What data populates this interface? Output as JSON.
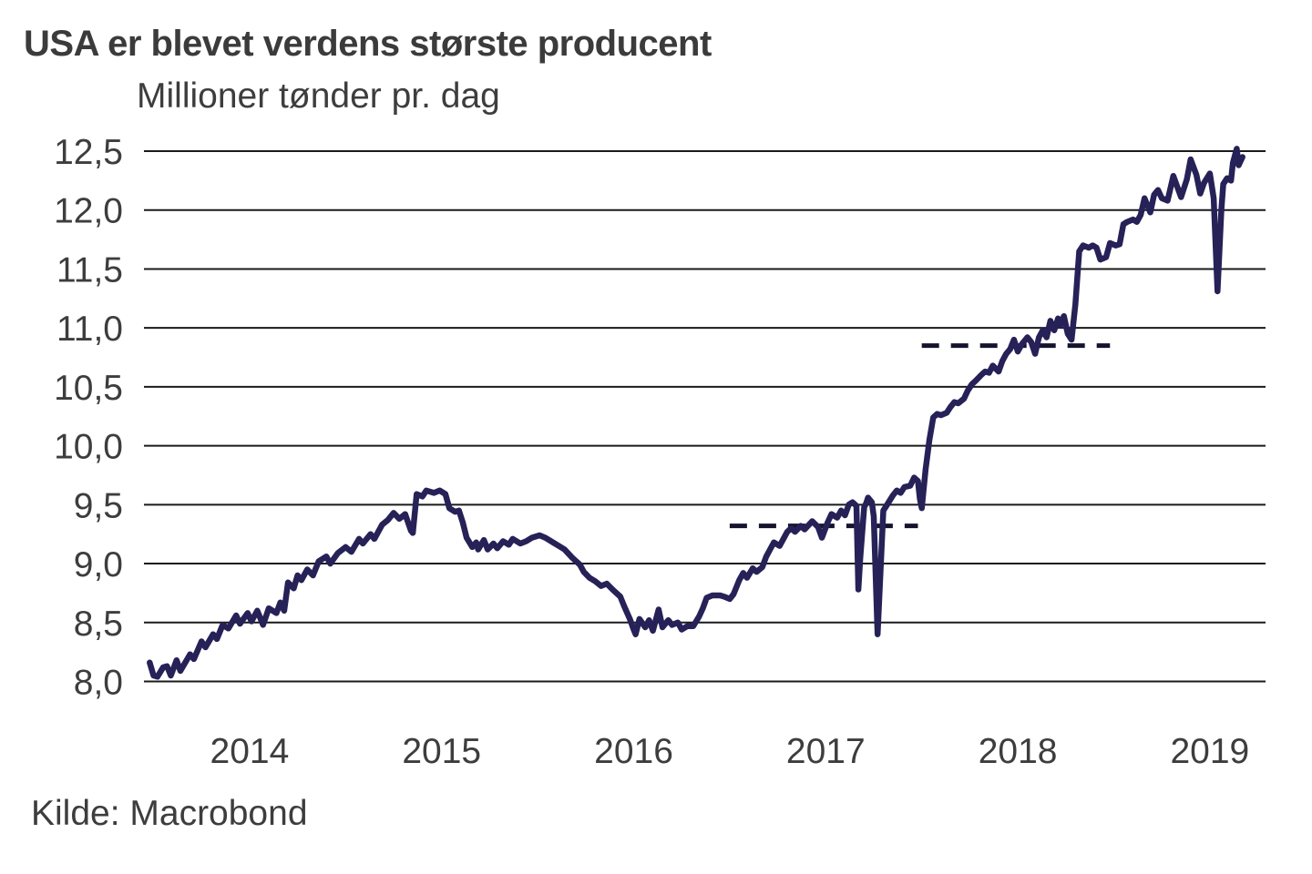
{
  "header": {
    "title": "USA er blevet verdens største producent",
    "subtitle": "Millioner tønder pr. dag"
  },
  "footer": {
    "source": "Kilde: Macrobond"
  },
  "chart_data": {
    "type": "line",
    "title": "USA er blevet verdens største producent",
    "ylabel": "Millioner tønder pr. dag",
    "source": "Kilde: Macrobond",
    "grid": true,
    "legend": "none",
    "xlim": [
      2013.95,
      2019.79
    ],
    "ylim": [
      8.0,
      12.5
    ],
    "y_ticks": [
      {
        "value": 12.5,
        "label": "12,5"
      },
      {
        "value": 12.0,
        "label": "12,0"
      },
      {
        "value": 11.5,
        "label": "11,5"
      },
      {
        "value": 11.0,
        "label": "11,0"
      },
      {
        "value": 10.5,
        "label": "10,5"
      },
      {
        "value": 10.0,
        "label": "10,0"
      },
      {
        "value": 9.5,
        "label": "9,5"
      },
      {
        "value": 9.0,
        "label": "9,0"
      },
      {
        "value": 8.5,
        "label": "8,5"
      },
      {
        "value": 8.0,
        "label": "8,0"
      }
    ],
    "x_ticks": [
      {
        "center": 2014.5,
        "label": "2014"
      },
      {
        "center": 2015.5,
        "label": "2015"
      },
      {
        "center": 2016.5,
        "label": "2016"
      },
      {
        "center": 2017.5,
        "label": "2017"
      },
      {
        "center": 2018.5,
        "label": "2018"
      },
      {
        "center": 2019.5,
        "label": "2019"
      }
    ],
    "line_color": "#262157",
    "reference_lines": [
      {
        "style": "dashed",
        "value": 9.32,
        "from": 2017.0,
        "to": 2017.98,
        "color": "#14142e"
      },
      {
        "style": "dashed",
        "value": 10.85,
        "from": 2018.0,
        "to": 2018.98,
        "color": "#14142e"
      }
    ],
    "series": [
      {
        "color": "#262157",
        "points": [
          [
            2013.98,
            8.16
          ],
          [
            2014.0,
            8.05
          ],
          [
            2014.02,
            8.04
          ],
          [
            2014.05,
            8.12
          ],
          [
            2014.07,
            8.13
          ],
          [
            2014.09,
            8.05
          ],
          [
            2014.12,
            8.18
          ],
          [
            2014.14,
            8.09
          ],
          [
            2014.19,
            8.23
          ],
          [
            2014.21,
            8.19
          ],
          [
            2014.25,
            8.34
          ],
          [
            2014.27,
            8.29
          ],
          [
            2014.31,
            8.4
          ],
          [
            2014.33,
            8.36
          ],
          [
            2014.36,
            8.48
          ],
          [
            2014.39,
            8.45
          ],
          [
            2014.43,
            8.56
          ],
          [
            2014.45,
            8.49
          ],
          [
            2014.49,
            8.58
          ],
          [
            2014.51,
            8.51
          ],
          [
            2014.54,
            8.6
          ],
          [
            2014.57,
            8.48
          ],
          [
            2014.6,
            8.62
          ],
          [
            2014.64,
            8.58
          ],
          [
            2014.66,
            8.67
          ],
          [
            2014.68,
            8.6
          ],
          [
            2014.7,
            8.84
          ],
          [
            2014.73,
            8.79
          ],
          [
            2014.75,
            8.9
          ],
          [
            2014.77,
            8.86
          ],
          [
            2014.8,
            8.95
          ],
          [
            2014.83,
            8.9
          ],
          [
            2014.86,
            9.02
          ],
          [
            2014.9,
            9.06
          ],
          [
            2014.92,
            9.0
          ],
          [
            2014.96,
            9.09
          ],
          [
            2015.0,
            9.14
          ],
          [
            2015.03,
            9.1
          ],
          [
            2015.07,
            9.21
          ],
          [
            2015.09,
            9.17
          ],
          [
            2015.13,
            9.25
          ],
          [
            2015.15,
            9.21
          ],
          [
            2015.19,
            9.33
          ],
          [
            2015.22,
            9.37
          ],
          [
            2015.25,
            9.43
          ],
          [
            2015.28,
            9.38
          ],
          [
            2015.31,
            9.42
          ],
          [
            2015.34,
            9.28
          ],
          [
            2015.35,
            9.26
          ],
          [
            2015.37,
            9.59
          ],
          [
            2015.4,
            9.57
          ],
          [
            2015.42,
            9.62
          ],
          [
            2015.46,
            9.6
          ],
          [
            2015.49,
            9.62
          ],
          [
            2015.52,
            9.59
          ],
          [
            2015.54,
            9.47
          ],
          [
            2015.57,
            9.44
          ],
          [
            2015.59,
            9.45
          ],
          [
            2015.61,
            9.35
          ],
          [
            2015.63,
            9.22
          ],
          [
            2015.66,
            9.14
          ],
          [
            2015.68,
            9.18
          ],
          [
            2015.69,
            9.12
          ],
          [
            2015.72,
            9.2
          ],
          [
            2015.74,
            9.12
          ],
          [
            2015.77,
            9.17
          ],
          [
            2015.79,
            9.13
          ],
          [
            2015.82,
            9.19
          ],
          [
            2015.85,
            9.16
          ],
          [
            2015.87,
            9.21
          ],
          [
            2015.91,
            9.17
          ],
          [
            2015.94,
            9.19
          ],
          [
            2015.97,
            9.22
          ],
          [
            2016.01,
            9.24
          ],
          [
            2016.04,
            9.22
          ],
          [
            2016.08,
            9.18
          ],
          [
            2016.11,
            9.15
          ],
          [
            2016.14,
            9.12
          ],
          [
            2016.18,
            9.05
          ],
          [
            2016.22,
            8.99
          ],
          [
            2016.24,
            8.93
          ],
          [
            2016.27,
            8.88
          ],
          [
            2016.3,
            8.85
          ],
          [
            2016.33,
            8.81
          ],
          [
            2016.36,
            8.83
          ],
          [
            2016.39,
            8.78
          ],
          [
            2016.43,
            8.72
          ],
          [
            2016.45,
            8.64
          ],
          [
            2016.48,
            8.53
          ],
          [
            2016.5,
            8.44
          ],
          [
            2016.51,
            8.4
          ],
          [
            2016.53,
            8.53
          ],
          [
            2016.56,
            8.46
          ],
          [
            2016.58,
            8.52
          ],
          [
            2016.6,
            8.43
          ],
          [
            2016.63,
            8.61
          ],
          [
            2016.65,
            8.46
          ],
          [
            2016.68,
            8.52
          ],
          [
            2016.7,
            8.48
          ],
          [
            2016.73,
            8.5
          ],
          [
            2016.75,
            8.44
          ],
          [
            2016.78,
            8.47
          ],
          [
            2016.81,
            8.47
          ],
          [
            2016.84,
            8.55
          ],
          [
            2016.86,
            8.62
          ],
          [
            2016.88,
            8.71
          ],
          [
            2016.91,
            8.73
          ],
          [
            2016.95,
            8.73
          ],
          [
            2016.97,
            8.72
          ],
          [
            2017.0,
            8.7
          ],
          [
            2017.02,
            8.74
          ],
          [
            2017.05,
            8.86
          ],
          [
            2017.07,
            8.92
          ],
          [
            2017.09,
            8.88
          ],
          [
            2017.12,
            8.96
          ],
          [
            2017.14,
            8.93
          ],
          [
            2017.17,
            8.97
          ],
          [
            2017.19,
            9.06
          ],
          [
            2017.21,
            9.12
          ],
          [
            2017.23,
            9.18
          ],
          [
            2017.26,
            9.15
          ],
          [
            2017.3,
            9.27
          ],
          [
            2017.32,
            9.3
          ],
          [
            2017.34,
            9.27
          ],
          [
            2017.37,
            9.32
          ],
          [
            2017.39,
            9.29
          ],
          [
            2017.43,
            9.36
          ],
          [
            2017.46,
            9.31
          ],
          [
            2017.48,
            9.22
          ],
          [
            2017.51,
            9.35
          ],
          [
            2017.53,
            9.42
          ],
          [
            2017.56,
            9.39
          ],
          [
            2017.58,
            9.45
          ],
          [
            2017.6,
            9.41
          ],
          [
            2017.62,
            9.5
          ],
          [
            2017.64,
            9.52
          ],
          [
            2017.66,
            9.49
          ],
          [
            2017.67,
            8.78
          ],
          [
            2017.68,
            9.05
          ],
          [
            2017.7,
            9.48
          ],
          [
            2017.71,
            9.51
          ],
          [
            2017.72,
            9.56
          ],
          [
            2017.74,
            9.52
          ],
          [
            2017.75,
            9.4
          ],
          [
            2017.77,
            8.4
          ],
          [
            2017.79,
            9.1
          ],
          [
            2017.8,
            9.45
          ],
          [
            2017.82,
            9.5
          ],
          [
            2017.85,
            9.58
          ],
          [
            2017.87,
            9.62
          ],
          [
            2017.89,
            9.6
          ],
          [
            2017.91,
            9.65
          ],
          [
            2017.94,
            9.66
          ],
          [
            2017.96,
            9.73
          ],
          [
            2017.98,
            9.7
          ],
          [
            2017.99,
            9.55
          ],
          [
            2018.0,
            9.47
          ],
          [
            2018.02,
            9.8
          ],
          [
            2018.04,
            10.05
          ],
          [
            2018.06,
            10.24
          ],
          [
            2018.08,
            10.27
          ],
          [
            2018.1,
            10.26
          ],
          [
            2018.13,
            10.28
          ],
          [
            2018.15,
            10.33
          ],
          [
            2018.17,
            10.37
          ],
          [
            2018.19,
            10.36
          ],
          [
            2018.22,
            10.4
          ],
          [
            2018.24,
            10.47
          ],
          [
            2018.26,
            10.52
          ],
          [
            2018.28,
            10.55
          ],
          [
            2018.31,
            10.6
          ],
          [
            2018.33,
            10.63
          ],
          [
            2018.35,
            10.62
          ],
          [
            2018.37,
            10.68
          ],
          [
            2018.4,
            10.63
          ],
          [
            2018.42,
            10.72
          ],
          [
            2018.44,
            10.78
          ],
          [
            2018.46,
            10.82
          ],
          [
            2018.48,
            10.9
          ],
          [
            2018.5,
            10.8
          ],
          [
            2018.52,
            10.86
          ],
          [
            2018.55,
            10.92
          ],
          [
            2018.57,
            10.88
          ],
          [
            2018.59,
            10.78
          ],
          [
            2018.61,
            10.92
          ],
          [
            2018.63,
            10.98
          ],
          [
            2018.65,
            10.92
          ],
          [
            2018.67,
            11.06
          ],
          [
            2018.69,
            10.98
          ],
          [
            2018.71,
            11.08
          ],
          [
            2018.72,
            11.02
          ],
          [
            2018.74,
            11.1
          ],
          [
            2018.76,
            10.95
          ],
          [
            2018.78,
            10.9
          ],
          [
            2018.8,
            11.2
          ],
          [
            2018.82,
            11.65
          ],
          [
            2018.84,
            11.7
          ],
          [
            2018.87,
            11.68
          ],
          [
            2018.89,
            11.7
          ],
          [
            2018.91,
            11.68
          ],
          [
            2018.93,
            11.58
          ],
          [
            2018.96,
            11.6
          ],
          [
            2018.98,
            11.72
          ],
          [
            2019.01,
            11.7
          ],
          [
            2019.03,
            11.71
          ],
          [
            2019.05,
            11.88
          ],
          [
            2019.07,
            11.9
          ],
          [
            2019.1,
            11.92
          ],
          [
            2019.12,
            11.9
          ],
          [
            2019.14,
            11.96
          ],
          [
            2019.16,
            12.1
          ],
          [
            2019.19,
            11.98
          ],
          [
            2019.21,
            12.13
          ],
          [
            2019.23,
            12.17
          ],
          [
            2019.25,
            12.1
          ],
          [
            2019.28,
            12.08
          ],
          [
            2019.31,
            12.29
          ],
          [
            2019.33,
            12.2
          ],
          [
            2019.35,
            12.11
          ],
          [
            2019.38,
            12.26
          ],
          [
            2019.4,
            12.43
          ],
          [
            2019.43,
            12.3
          ],
          [
            2019.45,
            12.14
          ],
          [
            2019.47,
            12.23
          ],
          [
            2019.5,
            12.31
          ],
          [
            2019.52,
            12.1
          ],
          [
            2019.54,
            11.31
          ],
          [
            2019.56,
            12.0
          ],
          [
            2019.57,
            12.22
          ],
          [
            2019.59,
            12.27
          ],
          [
            2019.61,
            12.25
          ],
          [
            2019.62,
            12.4
          ],
          [
            2019.64,
            12.52
          ],
          [
            2019.65,
            12.38
          ],
          [
            2019.67,
            12.45
          ]
        ]
      }
    ]
  }
}
